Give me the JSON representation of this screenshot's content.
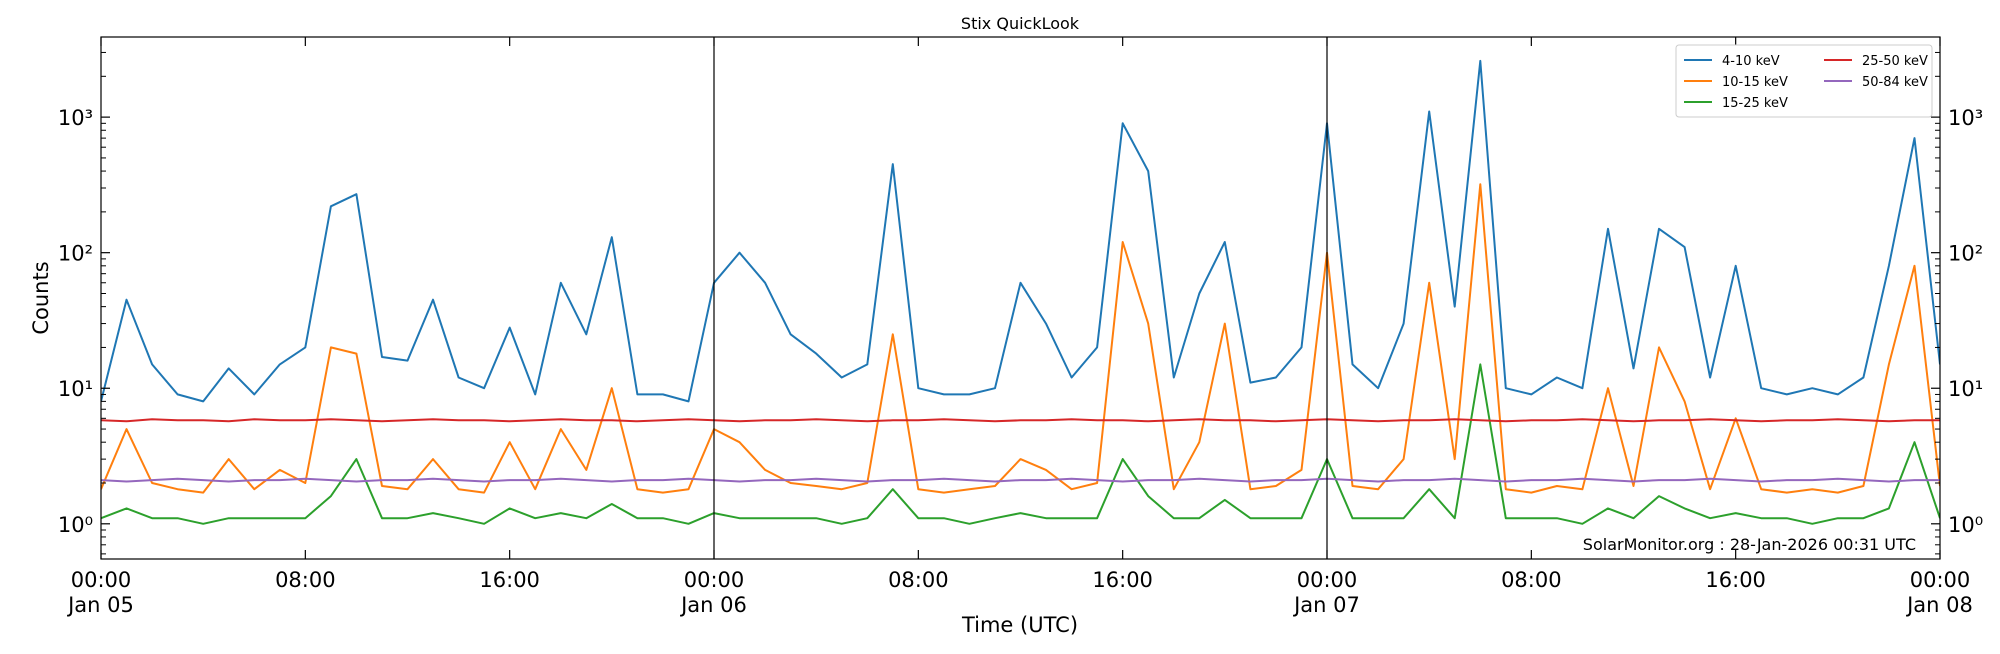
{
  "chart_data": {
    "type": "line",
    "title": "Stix QuickLook",
    "xlabel": "Time (UTC)",
    "ylabel": "Counts",
    "annotation": "SolarMonitor.org : 28-Jan-2026 00:31 UTC",
    "log_y": true,
    "legend": "upper right",
    "legend_columns": 2,
    "day_lines": [
      24,
      48
    ],
    "xlim": [
      0,
      72
    ],
    "xticks": [
      {
        "value": 0,
        "label": "00:00\nJan 05"
      },
      {
        "value": 8,
        "label": "08:00"
      },
      {
        "value": 16,
        "label": "16:00"
      },
      {
        "value": 24,
        "label": "00:00\nJan 06"
      },
      {
        "value": 32,
        "label": "08:00"
      },
      {
        "value": 40,
        "label": "16:00"
      },
      {
        "value": 48,
        "label": "00:00\nJan 07"
      },
      {
        "value": 56,
        "label": "08:00"
      },
      {
        "value": 64,
        "label": "16:00"
      },
      {
        "value": 72,
        "label": "00:00\nJan 08"
      }
    ],
    "ylim": [
      0.55,
      3900
    ],
    "yticks": [
      {
        "value": 1,
        "label": "10⁰"
      },
      {
        "value": 10,
        "label": "10¹"
      },
      {
        "value": 100,
        "label": "10²"
      },
      {
        "value": 1000,
        "label": "10³"
      }
    ],
    "x": [
      0,
      1,
      2,
      3,
      4,
      5,
      6,
      7,
      8,
      9,
      10,
      11,
      12,
      13,
      14,
      15,
      16,
      17,
      18,
      19,
      20,
      21,
      22,
      23,
      24,
      25,
      26,
      27,
      28,
      29,
      30,
      31,
      32,
      33,
      34,
      35,
      36,
      37,
      38,
      39,
      40,
      41,
      42,
      43,
      44,
      45,
      46,
      47,
      48,
      49,
      50,
      51,
      52,
      53,
      54,
      55,
      56,
      57,
      58,
      59,
      60,
      61,
      62,
      63,
      64,
      65,
      66,
      67,
      68,
      69,
      70,
      71,
      72
    ],
    "series": [
      {
        "name": "4-10 keV",
        "color": "#1f77b4",
        "values": [
          8,
          45,
          15,
          9,
          8,
          14,
          9,
          15,
          20,
          220,
          270,
          17,
          16,
          45,
          12,
          10,
          28,
          9,
          60,
          25,
          130,
          9,
          9,
          8,
          60,
          100,
          60,
          25,
          18,
          12,
          15,
          450,
          10,
          9,
          9,
          10,
          60,
          30,
          12,
          20,
          900,
          400,
          12,
          50,
          120,
          11,
          12,
          20,
          900,
          15,
          10,
          30,
          1100,
          40,
          2600,
          10,
          9,
          12,
          10,
          150,
          14,
          150,
          110,
          12,
          80,
          10,
          9,
          10,
          9,
          12,
          80,
          700,
          15
        ]
      },
      {
        "name": "10-15 keV",
        "color": "#ff7f0e",
        "values": [
          1.8,
          5,
          2,
          1.8,
          1.7,
          3,
          1.8,
          2.5,
          2,
          20,
          18,
          1.9,
          1.8,
          3,
          1.8,
          1.7,
          4,
          1.8,
          5,
          2.5,
          10,
          1.8,
          1.7,
          1.8,
          5,
          4,
          2.5,
          2,
          1.9,
          1.8,
          2,
          25,
          1.8,
          1.7,
          1.8,
          1.9,
          3,
          2.5,
          1.8,
          2,
          120,
          30,
          1.8,
          4,
          30,
          1.8,
          1.9,
          2.5,
          100,
          1.9,
          1.8,
          3,
          60,
          3,
          320,
          1.8,
          1.7,
          1.9,
          1.8,
          10,
          1.9,
          20,
          8,
          1.8,
          6,
          1.8,
          1.7,
          1.8,
          1.7,
          1.9,
          15,
          80,
          1.9
        ]
      },
      {
        "name": "15-25 keV",
        "color": "#2ca02c",
        "values": [
          1.1,
          1.3,
          1.1,
          1.1,
          1.0,
          1.1,
          1.1,
          1.1,
          1.1,
          1.6,
          3,
          1.1,
          1.1,
          1.2,
          1.1,
          1.0,
          1.3,
          1.1,
          1.2,
          1.1,
          1.4,
          1.1,
          1.1,
          1.0,
          1.2,
          1.1,
          1.1,
          1.1,
          1.1,
          1.0,
          1.1,
          1.8,
          1.1,
          1.1,
          1.0,
          1.1,
          1.2,
          1.1,
          1.1,
          1.1,
          3,
          1.6,
          1.1,
          1.1,
          1.5,
          1.1,
          1.1,
          1.1,
          3,
          1.1,
          1.1,
          1.1,
          1.8,
          1.1,
          15,
          1.1,
          1.1,
          1.1,
          1.0,
          1.3,
          1.1,
          1.6,
          1.3,
          1.1,
          1.2,
          1.1,
          1.1,
          1.0,
          1.1,
          1.1,
          1.3,
          4,
          1.1
        ]
      },
      {
        "name": "25-50 keV",
        "color": "#d62728",
        "values": [
          5.8,
          5.7,
          5.9,
          5.8,
          5.8,
          5.7,
          5.9,
          5.8,
          5.8,
          5.9,
          5.8,
          5.7,
          5.8,
          5.9,
          5.8,
          5.8,
          5.7,
          5.8,
          5.9,
          5.8,
          5.8,
          5.7,
          5.8,
          5.9,
          5.8,
          5.7,
          5.8,
          5.8,
          5.9,
          5.8,
          5.7,
          5.8,
          5.8,
          5.9,
          5.8,
          5.7,
          5.8,
          5.8,
          5.9,
          5.8,
          5.8,
          5.7,
          5.8,
          5.9,
          5.8,
          5.8,
          5.7,
          5.8,
          5.9,
          5.8,
          5.7,
          5.8,
          5.8,
          5.9,
          5.8,
          5.7,
          5.8,
          5.8,
          5.9,
          5.8,
          5.7,
          5.8,
          5.8,
          5.9,
          5.8,
          5.7,
          5.8,
          5.8,
          5.9,
          5.8,
          5.7,
          5.8,
          5.8
        ]
      },
      {
        "name": "50-84 keV",
        "color": "#9467bd",
        "values": [
          2.1,
          2.05,
          2.1,
          2.15,
          2.1,
          2.05,
          2.1,
          2.1,
          2.15,
          2.1,
          2.05,
          2.1,
          2.1,
          2.15,
          2.1,
          2.05,
          2.1,
          2.1,
          2.15,
          2.1,
          2.05,
          2.1,
          2.1,
          2.15,
          2.1,
          2.05,
          2.1,
          2.1,
          2.15,
          2.1,
          2.05,
          2.1,
          2.1,
          2.15,
          2.1,
          2.05,
          2.1,
          2.1,
          2.15,
          2.1,
          2.05,
          2.1,
          2.1,
          2.15,
          2.1,
          2.05,
          2.1,
          2.1,
          2.15,
          2.1,
          2.05,
          2.1,
          2.1,
          2.15,
          2.1,
          2.05,
          2.1,
          2.1,
          2.15,
          2.1,
          2.05,
          2.1,
          2.1,
          2.15,
          2.1,
          2.05,
          2.1,
          2.1,
          2.15,
          2.1,
          2.05,
          2.1,
          2.1
        ]
      }
    ]
  }
}
